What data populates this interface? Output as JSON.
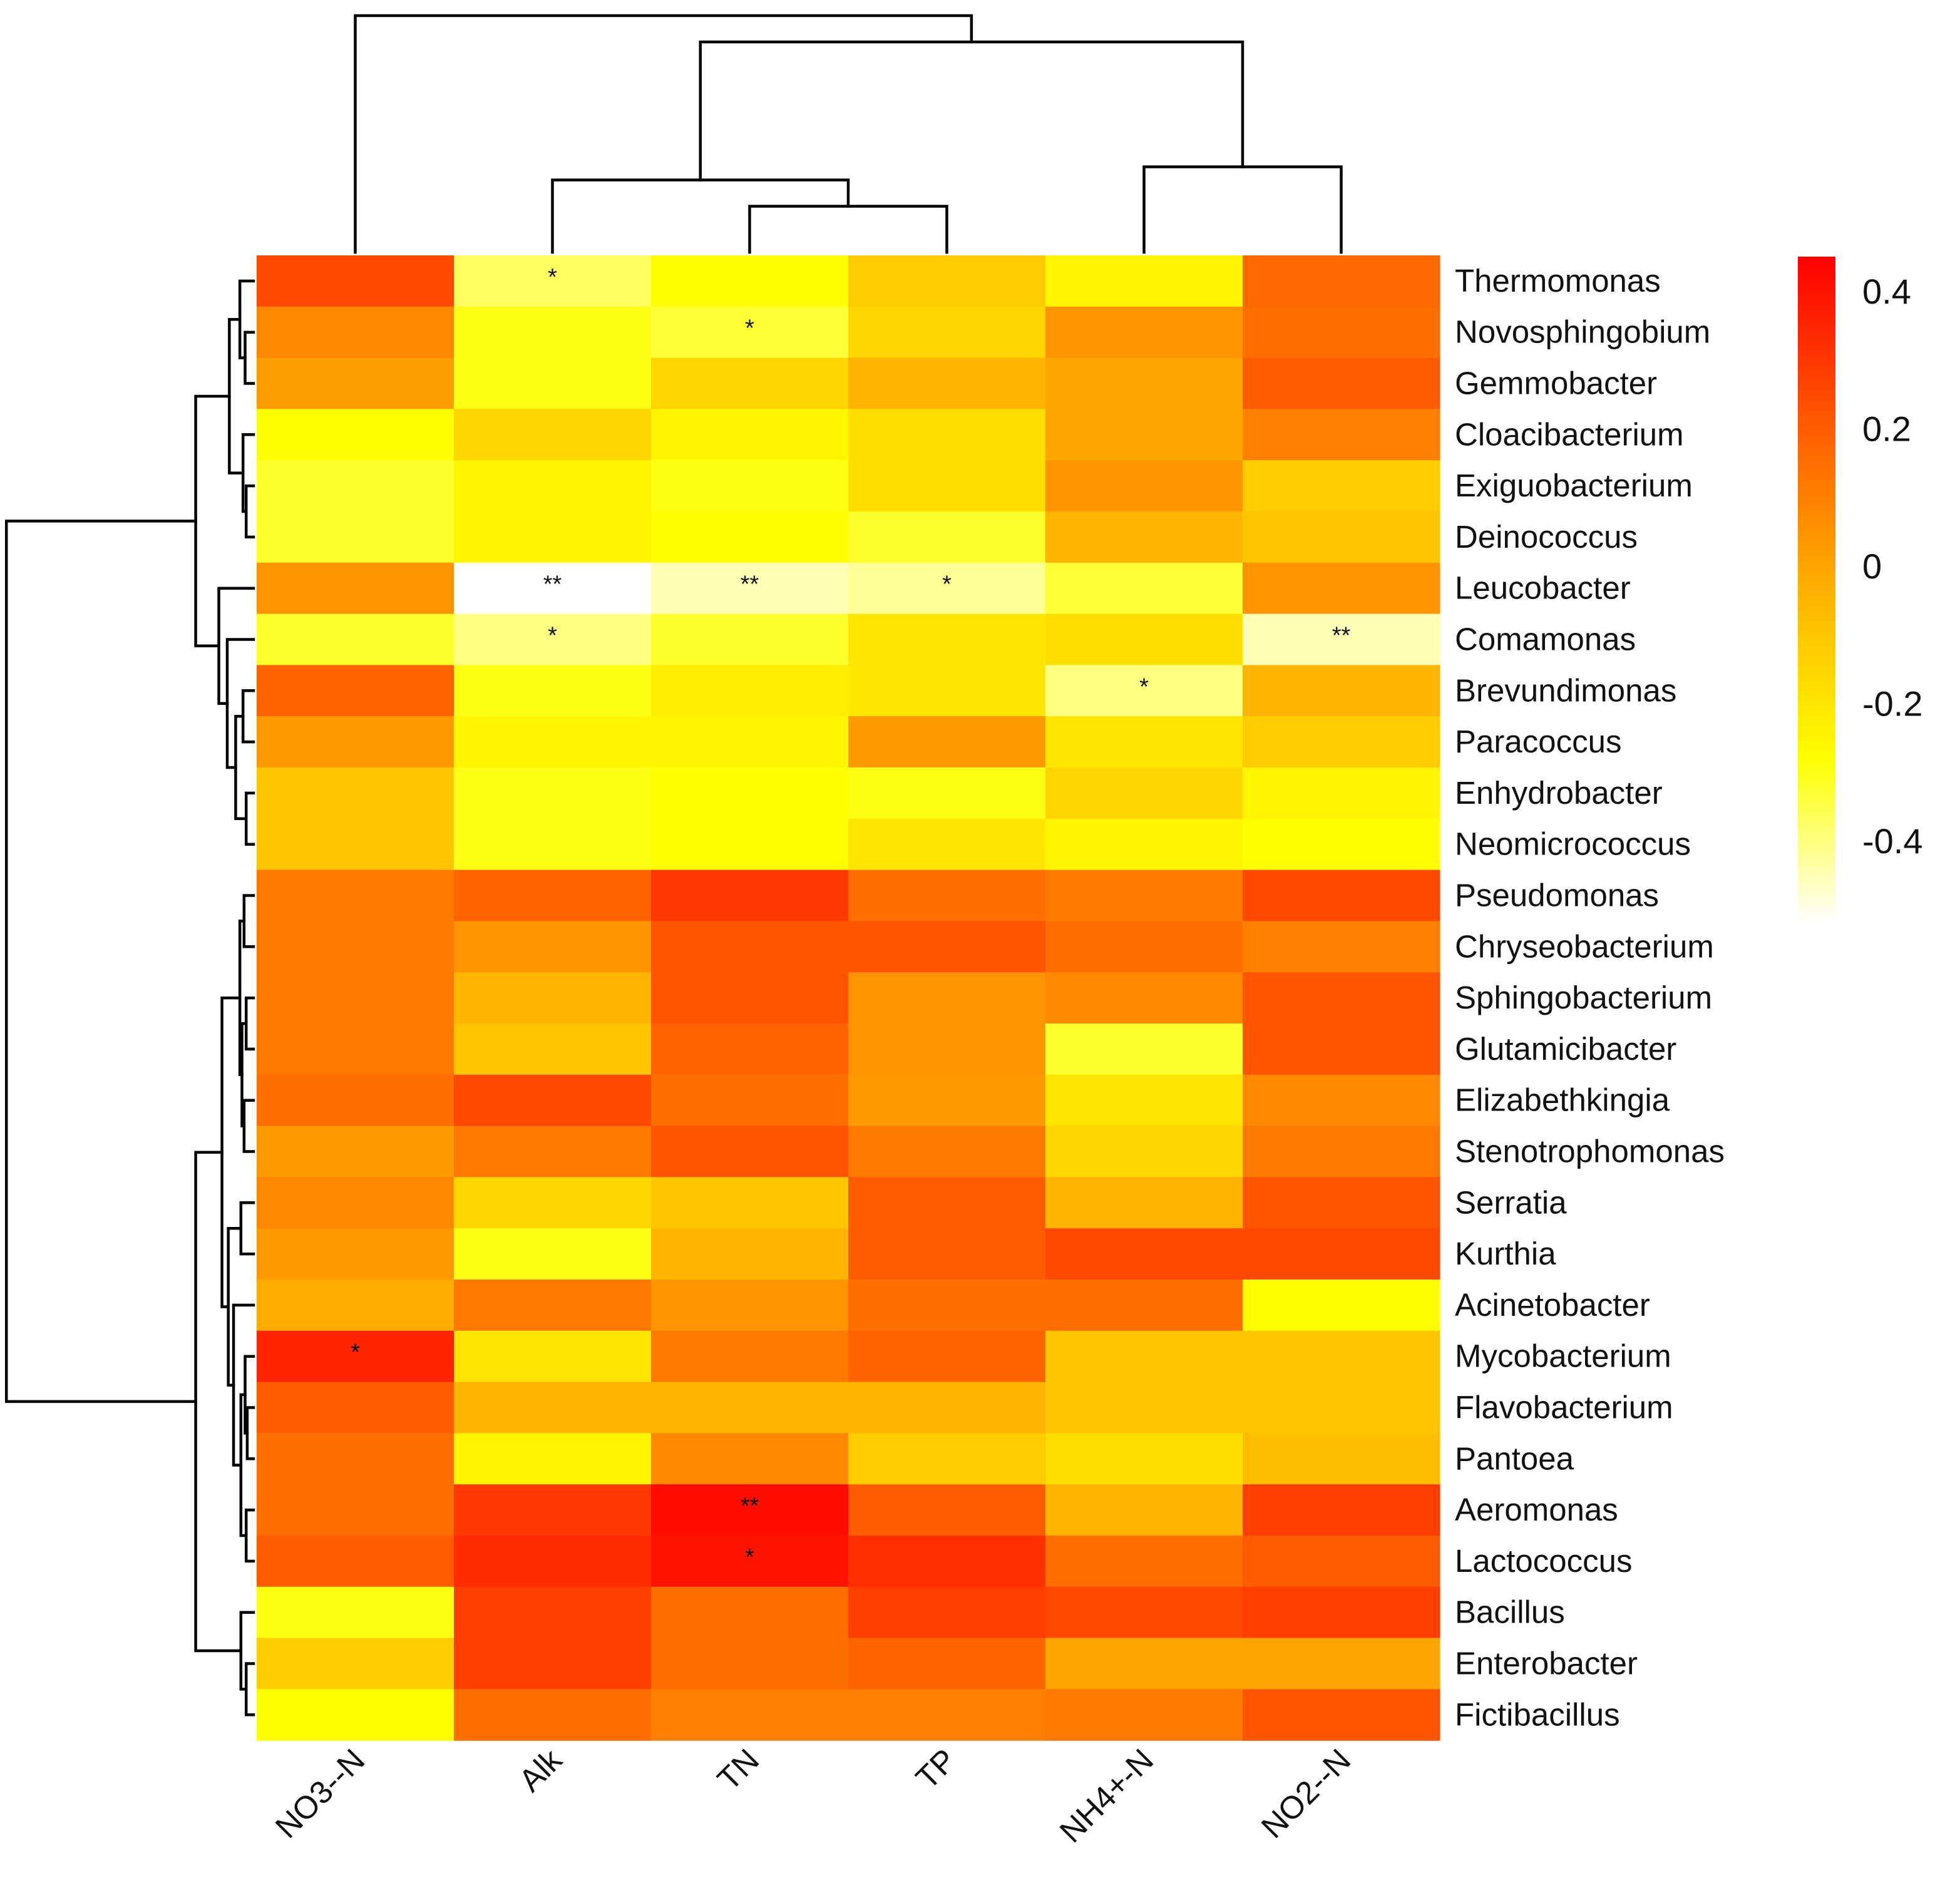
{
  "chart_data": {
    "type": "heatmap",
    "title": "",
    "columns": [
      "NO3--N",
      "Alk",
      "TN",
      "TP",
      "NH4+-N",
      "NO2--N"
    ],
    "rows": [
      "Thermomonas",
      "Novosphingobium",
      "Gemmobacter",
      "Cloacibacterium",
      "Exiguobacterium",
      "Deinococcus",
      "Leucobacter",
      "Comamonas",
      "Brevundimonas",
      "Paracoccus",
      "Enhydrobacter",
      "Neomicrococcus",
      "Pseudomonas",
      "Chryseobacterium",
      "Sphingobacterium",
      "Glutamicibacter",
      "Elizabethkingia",
      "Stenotrophomonas",
      "Serratia",
      "Kurthia",
      "Acinetobacter",
      "Mycobacterium",
      "Flavobacterium",
      "Pantoea",
      "Aeromonas",
      "Lactococcus",
      "Bacillus",
      "Enterobacter",
      "Fictibacillus"
    ],
    "values": [
      [
        0.25,
        -0.37,
        -0.28,
        -0.12,
        -0.25,
        0.17
      ],
      [
        0.08,
        -0.3,
        -0.33,
        -0.15,
        0.05,
        0.15
      ],
      [
        0.02,
        -0.3,
        -0.15,
        -0.05,
        0.0,
        0.2
      ],
      [
        -0.28,
        -0.15,
        -0.25,
        -0.18,
        0.0,
        0.1
      ],
      [
        -0.32,
        -0.25,
        -0.3,
        -0.18,
        0.05,
        -0.12
      ],
      [
        -0.32,
        -0.25,
        -0.28,
        -0.32,
        -0.05,
        -0.1
      ],
      [
        0.05,
        -0.52,
        -0.45,
        -0.42,
        -0.33,
        0.05
      ],
      [
        -0.32,
        -0.4,
        -0.32,
        -0.2,
        -0.18,
        -0.45
      ],
      [
        0.18,
        -0.3,
        -0.22,
        -0.2,
        -0.4,
        -0.05
      ],
      [
        0.03,
        -0.25,
        -0.25,
        0.03,
        -0.2,
        -0.12
      ],
      [
        -0.1,
        -0.3,
        -0.28,
        -0.3,
        -0.15,
        -0.25
      ],
      [
        -0.1,
        -0.3,
        -0.28,
        -0.2,
        -0.25,
        -0.28
      ],
      [
        0.12,
        0.18,
        0.3,
        0.15,
        0.12,
        0.25
      ],
      [
        0.12,
        0.05,
        0.22,
        0.22,
        0.15,
        0.1
      ],
      [
        0.12,
        -0.05,
        0.22,
        0.05,
        0.08,
        0.22
      ],
      [
        0.12,
        -0.1,
        0.18,
        0.05,
        -0.32,
        0.22
      ],
      [
        0.15,
        0.25,
        0.15,
        0.03,
        -0.2,
        0.08
      ],
      [
        0.03,
        0.12,
        0.22,
        0.12,
        -0.15,
        0.12
      ],
      [
        0.08,
        -0.15,
        -0.1,
        0.2,
        -0.05,
        0.22
      ],
      [
        0.03,
        -0.3,
        -0.05,
        0.2,
        0.25,
        0.25
      ],
      [
        -0.02,
        0.12,
        0.05,
        0.15,
        0.15,
        -0.28
      ],
      [
        0.35,
        -0.2,
        0.12,
        0.18,
        -0.1,
        -0.1
      ],
      [
        0.2,
        -0.05,
        -0.05,
        -0.05,
        -0.1,
        -0.1
      ],
      [
        0.15,
        -0.25,
        0.08,
        -0.12,
        -0.18,
        -0.08
      ],
      [
        0.15,
        0.3,
        0.42,
        0.2,
        -0.05,
        0.28
      ],
      [
        0.2,
        0.33,
        0.4,
        0.32,
        0.15,
        0.2
      ],
      [
        -0.3,
        0.28,
        0.15,
        0.28,
        0.25,
        0.28
      ],
      [
        -0.12,
        0.28,
        0.15,
        0.18,
        0.0,
        0.0
      ],
      [
        -0.28,
        0.15,
        0.1,
        0.1,
        0.12,
        0.22
      ]
    ],
    "annotations": [
      {
        "row": "Thermomonas",
        "col": "Alk",
        "text": "*"
      },
      {
        "row": "Novosphingobium",
        "col": "TN",
        "text": "*"
      },
      {
        "row": "Leucobacter",
        "col": "Alk",
        "text": "**"
      },
      {
        "row": "Leucobacter",
        "col": "TN",
        "text": "**"
      },
      {
        "row": "Leucobacter",
        "col": "TP",
        "text": "*"
      },
      {
        "row": "Comamonas",
        "col": "Alk",
        "text": "*"
      },
      {
        "row": "Comamonas",
        "col": "NO2--N",
        "text": "**"
      },
      {
        "row": "Brevundimonas",
        "col": "NH4+-N",
        "text": "*"
      },
      {
        "row": "Mycobacterium",
        "col": "NO3--N",
        "text": "*"
      },
      {
        "row": "Aeromonas",
        "col": "TN",
        "text": "**"
      },
      {
        "row": "Lactococcus",
        "col": "TN",
        "text": "*"
      }
    ],
    "colorscale": {
      "range": [
        -0.52,
        0.45
      ],
      "stops": [
        {
          "value": -0.52,
          "color": "#ffffff"
        },
        {
          "value": -0.28,
          "color": "#ffff00"
        },
        {
          "value": 0.0,
          "color": "#ffa500"
        },
        {
          "value": 0.45,
          "color": "#ff0000"
        }
      ],
      "ticks": [
        0.4,
        0.2,
        0,
        -0.2,
        -0.4
      ],
      "tick_labels": [
        "0.4",
        "0.2",
        "0",
        "-0.2",
        "-0.4"
      ]
    },
    "legend": "right",
    "col_dendrogram": "top",
    "row_dendrogram": "left"
  }
}
